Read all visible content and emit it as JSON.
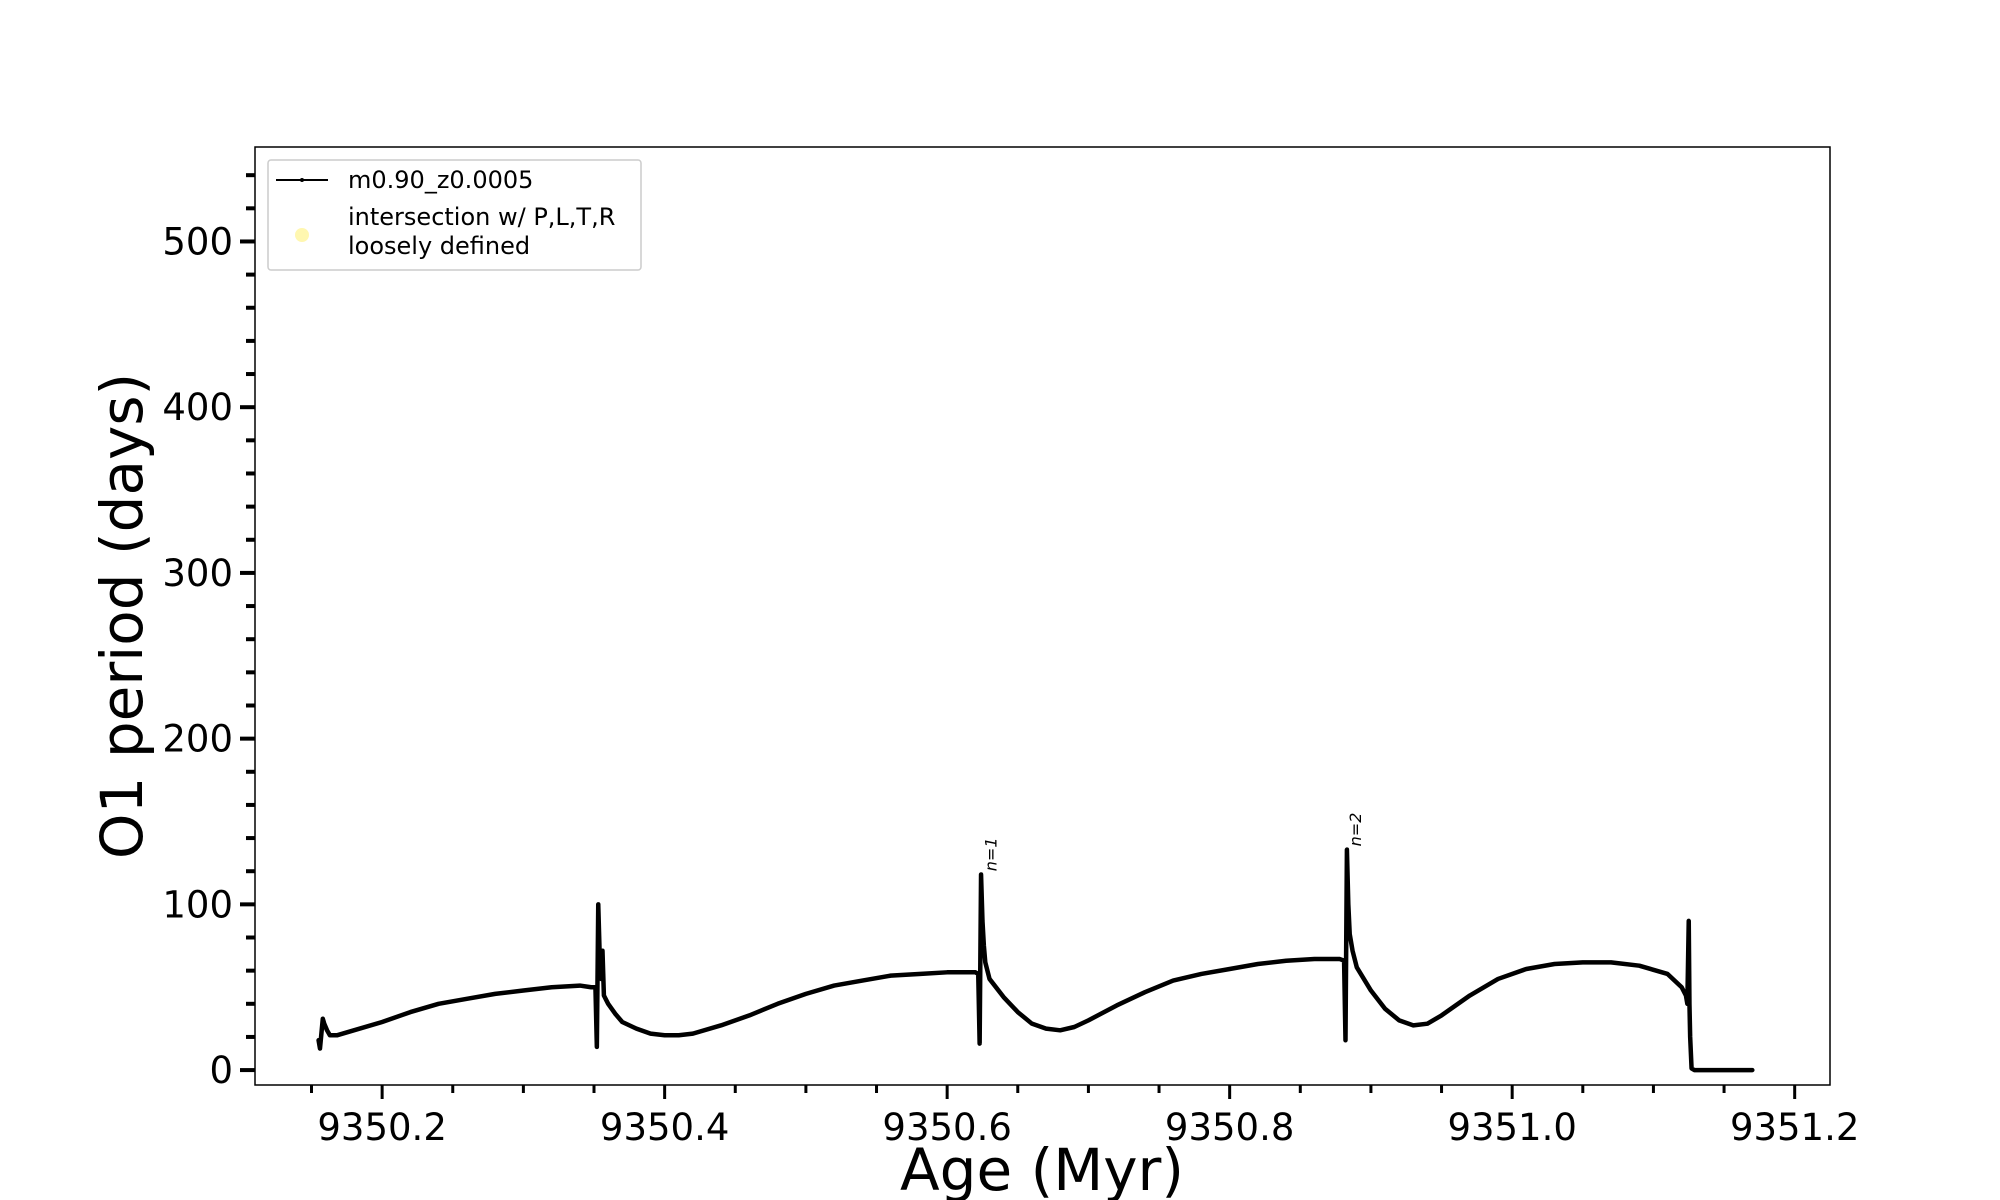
{
  "chart_data": {
    "type": "line",
    "xlabel": "Age (Myr)",
    "ylabel": "O1 period (days)",
    "xlim": [
      9350.11,
      9351.225
    ],
    "ylim": [
      -9,
      557
    ],
    "x_ticks": [
      9350.2,
      9350.4,
      9350.6,
      9350.8,
      9351.0,
      9351.2
    ],
    "x_tick_labels": [
      "9350.2",
      "9350.4",
      "9350.6",
      "9350.8",
      "9351.0",
      "9351.2"
    ],
    "x_minor_step": 0.05,
    "y_ticks": [
      0,
      100,
      200,
      300,
      400,
      500
    ],
    "y_tick_labels": [
      "0",
      "100",
      "200",
      "300",
      "400",
      "500"
    ],
    "y_minor_step": 20,
    "grid": false,
    "legend": {
      "placement": "upper-left",
      "entries": [
        {
          "label": "m0.90_z0.0005",
          "marker": "line-dot",
          "color": "#000000"
        },
        {
          "label_lines": [
            "intersection w/ P,L,T,R",
            "loosely defined"
          ],
          "marker": "circle",
          "color": "#fff7b0"
        }
      ]
    },
    "annotations": [
      {
        "text": "n=1",
        "x": 9350.628,
        "y": 120
      },
      {
        "text": "n=2",
        "x": 9350.886,
        "y": 135
      }
    ],
    "series": [
      {
        "name": "m0.90_z0.0005",
        "color": "#000000",
        "points": [
          [
            9350.155,
            18
          ],
          [
            9350.156,
            13
          ],
          [
            9350.157,
            22
          ],
          [
            9350.158,
            31
          ],
          [
            9350.159,
            28
          ],
          [
            9350.161,
            24
          ],
          [
            9350.163,
            21
          ],
          [
            9350.168,
            21
          ],
          [
            9350.18,
            24
          ],
          [
            9350.2,
            29
          ],
          [
            9350.22,
            35
          ],
          [
            9350.24,
            40
          ],
          [
            9350.26,
            43
          ],
          [
            9350.28,
            46
          ],
          [
            9350.3,
            48
          ],
          [
            9350.32,
            50
          ],
          [
            9350.34,
            51
          ],
          [
            9350.348,
            50
          ],
          [
            9350.351,
            50
          ],
          [
            9350.352,
            14
          ],
          [
            9350.353,
            100
          ],
          [
            9350.354,
            70
          ],
          [
            9350.355,
            55
          ],
          [
            9350.356,
            72
          ],
          [
            9350.357,
            45
          ],
          [
            9350.36,
            40
          ],
          [
            9350.365,
            34
          ],
          [
            9350.37,
            29
          ],
          [
            9350.38,
            25
          ],
          [
            9350.39,
            22
          ],
          [
            9350.4,
            21
          ],
          [
            9350.41,
            21
          ],
          [
            9350.42,
            22
          ],
          [
            9350.44,
            27
          ],
          [
            9350.46,
            33
          ],
          [
            9350.48,
            40
          ],
          [
            9350.5,
            46
          ],
          [
            9350.52,
            51
          ],
          [
            9350.54,
            54
          ],
          [
            9350.56,
            57
          ],
          [
            9350.58,
            58
          ],
          [
            9350.6,
            59
          ],
          [
            9350.62,
            59
          ],
          [
            9350.622,
            58
          ],
          [
            9350.623,
            16
          ],
          [
            9350.624,
            118
          ],
          [
            9350.625,
            90
          ],
          [
            9350.626,
            75
          ],
          [
            9350.627,
            65
          ],
          [
            9350.63,
            55
          ],
          [
            9350.64,
            44
          ],
          [
            9350.65,
            35
          ],
          [
            9350.66,
            28
          ],
          [
            9350.67,
            25
          ],
          [
            9350.68,
            24
          ],
          [
            9350.69,
            26
          ],
          [
            9350.7,
            30
          ],
          [
            9350.72,
            39
          ],
          [
            9350.74,
            47
          ],
          [
            9350.76,
            54
          ],
          [
            9350.78,
            58
          ],
          [
            9350.8,
            61
          ],
          [
            9350.82,
            64
          ],
          [
            9350.84,
            66
          ],
          [
            9350.86,
            67
          ],
          [
            9350.878,
            67
          ],
          [
            9350.881,
            66
          ],
          [
            9350.882,
            18
          ],
          [
            9350.883,
            133
          ],
          [
            9350.884,
            100
          ],
          [
            9350.885,
            82
          ],
          [
            9350.887,
            72
          ],
          [
            9350.89,
            62
          ],
          [
            9350.9,
            48
          ],
          [
            9350.91,
            37
          ],
          [
            9350.92,
            30
          ],
          [
            9350.93,
            27
          ],
          [
            9350.94,
            28
          ],
          [
            9350.95,
            33
          ],
          [
            9350.97,
            45
          ],
          [
            9350.99,
            55
          ],
          [
            9351.01,
            61
          ],
          [
            9351.03,
            64
          ],
          [
            9351.05,
            65
          ],
          [
            9351.07,
            65
          ],
          [
            9351.09,
            63
          ],
          [
            9351.11,
            58
          ],
          [
            9351.12,
            50
          ],
          [
            9351.123,
            45
          ],
          [
            9351.124,
            40
          ],
          [
            9351.125,
            90
          ],
          [
            9351.1255,
            40
          ],
          [
            9351.126,
            20
          ],
          [
            9351.127,
            1
          ],
          [
            9351.129,
            0
          ],
          [
            9351.14,
            0
          ],
          [
            9351.16,
            0
          ],
          [
            9351.17,
            0
          ]
        ]
      }
    ]
  }
}
